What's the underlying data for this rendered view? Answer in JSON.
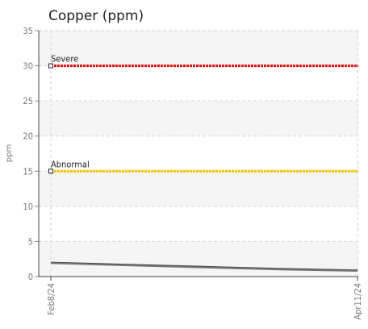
{
  "chart_data": {
    "type": "line",
    "title": "Copper (ppm)",
    "ylabel": "ppm",
    "xlabel": "",
    "ylim": [
      0,
      35
    ],
    "yticks": [
      0,
      5,
      10,
      15,
      20,
      25,
      30,
      35
    ],
    "x_tick_labels": [
      "Feb8/24",
      "Apr11/24"
    ],
    "grid": true,
    "thresholds": [
      {
        "name": "Severe",
        "value": 30,
        "color": "#e01010"
      },
      {
        "name": "Abnormal",
        "value": 15,
        "color": "#f2c200"
      }
    ],
    "series": [
      {
        "values": [
          2.0,
          1.7,
          1.4,
          1.1,
          0.9
        ],
        "color": "#444444"
      },
      {
        "values": [
          1.9,
          1.6,
          1.3,
          1.0,
          0.8
        ],
        "color": "#777777"
      }
    ]
  }
}
